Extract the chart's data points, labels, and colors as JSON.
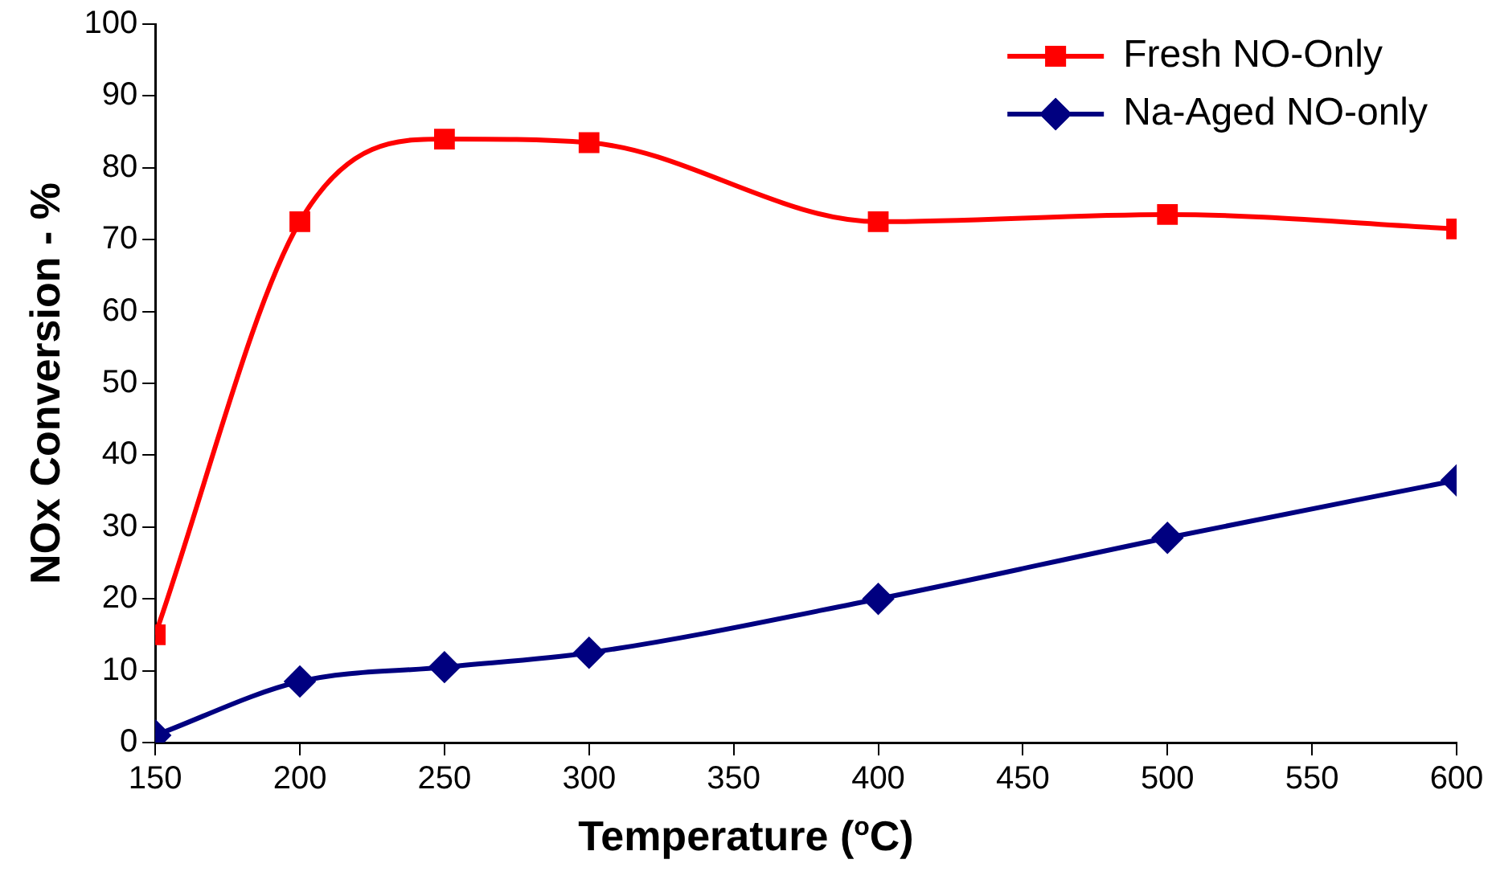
{
  "chart_data": {
    "type": "line",
    "xlabel": "Temperature  ($^{o}$C)",
    "ylabel": "NOx Conversion - %",
    "x": [
      150,
      200,
      250,
      300,
      400,
      500,
      600
    ],
    "xlim": [
      150,
      600
    ],
    "xticks": [
      150,
      200,
      250,
      300,
      350,
      400,
      450,
      500,
      550,
      600
    ],
    "ylim": [
      0,
      100
    ],
    "yticks": [
      0,
      10,
      20,
      30,
      40,
      50,
      60,
      70,
      80,
      90,
      100
    ],
    "grid": false,
    "legend": "top right",
    "series": [
      {
        "name": "Fresh NO-Only",
        "color": "#ff0000",
        "marker": "square",
        "values": [
          15,
          72.5,
          84,
          83.5,
          72.5,
          73.5,
          71.5
        ]
      },
      {
        "name": "Na-Aged NO-only",
        "color": "#000080",
        "marker": "diamond",
        "values": [
          1,
          8.5,
          10.5,
          12.5,
          20,
          28.5,
          36.5
        ]
      }
    ]
  }
}
